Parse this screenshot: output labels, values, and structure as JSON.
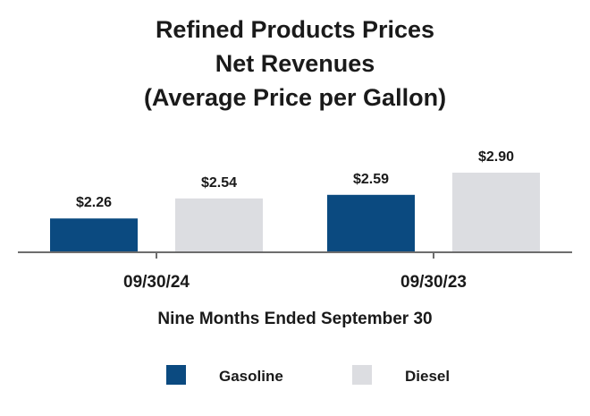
{
  "chart_data": {
    "type": "bar",
    "title": [
      "Refined Products Prices",
      "Net Revenues",
      "(Average Price per Gallon)"
    ],
    "categories": [
      "09/30/24",
      "09/30/23"
    ],
    "series": [
      {
        "name": "Gasoline",
        "values": [
          2.26,
          2.59
        ],
        "labels": [
          "$2.26",
          "$2.59"
        ],
        "color": "#0b4a80"
      },
      {
        "name": "Diesel",
        "values": [
          2.54,
          2.9
        ],
        "labels": [
          "$2.54",
          "$2.90"
        ],
        "color": "#dcdde1"
      }
    ],
    "xlabel": "Nine Months Ended September 30",
    "ylabel": "",
    "ylim": [
      1.8,
      3.0
    ],
    "grid": false,
    "legend": "bottom"
  }
}
